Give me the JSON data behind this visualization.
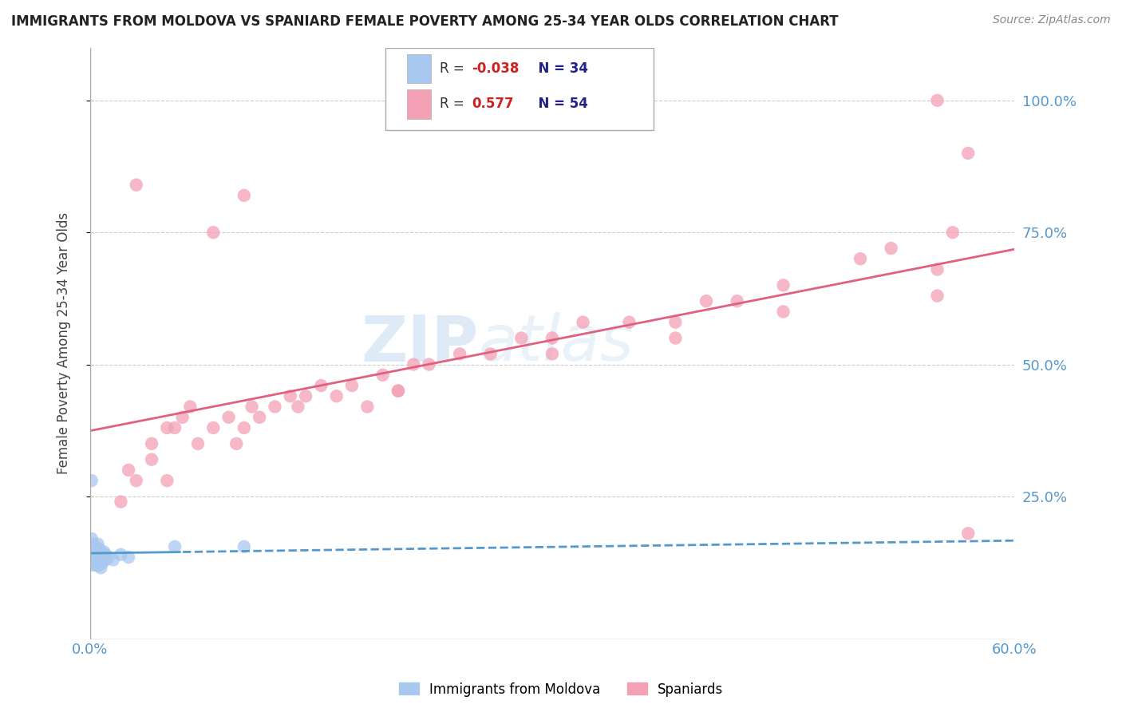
{
  "title": "IMMIGRANTS FROM MOLDOVA VS SPANIARD FEMALE POVERTY AMONG 25-34 YEAR OLDS CORRELATION CHART",
  "source": "Source: ZipAtlas.com",
  "ylabel": "Female Poverty Among 25-34 Year Olds",
  "xlim": [
    0.0,
    0.6
  ],
  "ylim": [
    -0.02,
    1.1
  ],
  "color_blue": "#a8c8f0",
  "color_pink": "#f4a0b5",
  "color_line_blue": "#5599cc",
  "color_line_pink": "#e06080",
  "watermark_zip": "ZIP",
  "watermark_atlas": "atlas",
  "blue_x": [
    0.001,
    0.001,
    0.002,
    0.002,
    0.002,
    0.003,
    0.003,
    0.003,
    0.004,
    0.004,
    0.004,
    0.005,
    0.005,
    0.005,
    0.005,
    0.006,
    0.006,
    0.006,
    0.007,
    0.007,
    0.007,
    0.008,
    0.008,
    0.009,
    0.009,
    0.01,
    0.01,
    0.012,
    0.015,
    0.02,
    0.025,
    0.055,
    0.1,
    0.001
  ],
  "blue_y": [
    0.17,
    0.15,
    0.16,
    0.14,
    0.12,
    0.155,
    0.14,
    0.13,
    0.15,
    0.13,
    0.12,
    0.16,
    0.145,
    0.135,
    0.12,
    0.15,
    0.135,
    0.12,
    0.145,
    0.13,
    0.115,
    0.14,
    0.125,
    0.145,
    0.13,
    0.14,
    0.13,
    0.135,
    0.13,
    0.14,
    0.135,
    0.155,
    0.155,
    0.28
  ],
  "pink_x": [
    0.02,
    0.025,
    0.03,
    0.04,
    0.04,
    0.05,
    0.05,
    0.055,
    0.06,
    0.065,
    0.07,
    0.08,
    0.09,
    0.095,
    0.1,
    0.105,
    0.11,
    0.12,
    0.13,
    0.135,
    0.14,
    0.15,
    0.16,
    0.17,
    0.18,
    0.19,
    0.2,
    0.21,
    0.22,
    0.24,
    0.26,
    0.28,
    0.3,
    0.32,
    0.35,
    0.38,
    0.4,
    0.42,
    0.45,
    0.5,
    0.52,
    0.55,
    0.55,
    0.56,
    0.57,
    0.45,
    0.38,
    0.3,
    0.2,
    0.55,
    0.03,
    0.1,
    0.08,
    0.57
  ],
  "pink_y": [
    0.24,
    0.3,
    0.28,
    0.32,
    0.35,
    0.28,
    0.38,
    0.38,
    0.4,
    0.42,
    0.35,
    0.38,
    0.4,
    0.35,
    0.38,
    0.42,
    0.4,
    0.42,
    0.44,
    0.42,
    0.44,
    0.46,
    0.44,
    0.46,
    0.42,
    0.48,
    0.45,
    0.5,
    0.5,
    0.52,
    0.52,
    0.55,
    0.55,
    0.58,
    0.58,
    0.58,
    0.62,
    0.62,
    0.65,
    0.7,
    0.72,
    0.63,
    0.68,
    0.75,
    0.9,
    0.6,
    0.55,
    0.52,
    0.45,
    1.0,
    0.84,
    0.82,
    0.75,
    0.18
  ],
  "ytick_positions": [
    0.25,
    0.5,
    0.75,
    1.0
  ],
  "ytick_labels": [
    "25.0%",
    "50.0%",
    "75.0%",
    "100.0%"
  ],
  "xtick_positions": [
    0.0,
    0.1,
    0.2,
    0.3,
    0.4,
    0.5,
    0.6
  ],
  "xtick_labels": [
    "0.0%",
    "",
    "",
    "",
    "",
    "",
    "60.0%"
  ]
}
